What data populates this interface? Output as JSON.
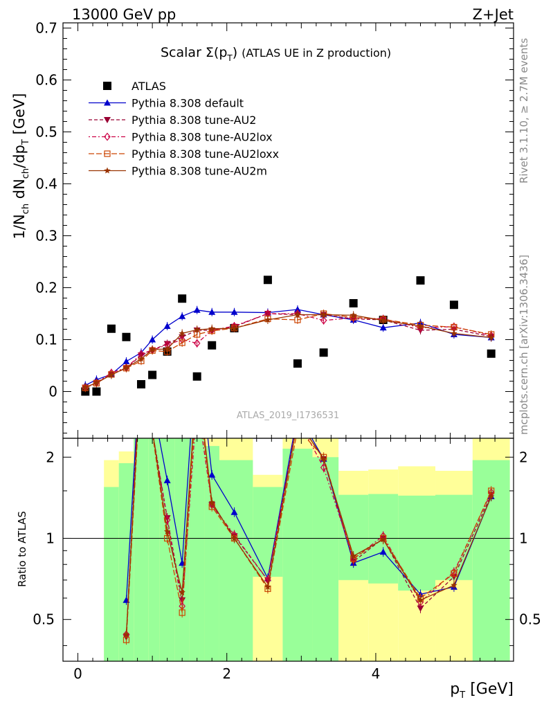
{
  "header": {
    "left": "13000 GeV pp",
    "right": "Z+Jet"
  },
  "side_labels": {
    "rivet": "Rivet 3.1.10, ≥ 2.7M events",
    "mcplots": "mcplots.cern.ch [arXiv:1306.3436]"
  },
  "chart_data": [
    {
      "type": "scatter",
      "panel": "main",
      "title_main": "Scalar Σ(p",
      "title_sub": "T",
      "title_close": ")",
      "title_note": "(ATLAS UE in Z production)",
      "watermark": "ATLAS_2019_I1736531",
      "ylabel": "1/N_ch dN_ch/dp_T [GeV]",
      "xlim": [
        -0.2,
        5.85
      ],
      "ylim": [
        -0.09,
        0.71
      ],
      "y_ticks": [
        0,
        0.1,
        0.2,
        0.3,
        0.4,
        0.5,
        0.6,
        0.7
      ],
      "y_tick_labels": [
        "0",
        "0.1",
        "0.2",
        "0.3",
        "0.4",
        "0.5",
        "0.6",
        "0.7"
      ],
      "legend_position": "top-left",
      "x": [
        0.1,
        0.25,
        0.45,
        0.65,
        0.85,
        1.0,
        1.2,
        1.4,
        1.6,
        1.8,
        2.1,
        2.55,
        2.95,
        3.3,
        3.7,
        4.1,
        4.6,
        5.05,
        5.55
      ],
      "series": [
        {
          "name": "ATLAS",
          "style": "data",
          "color": "#000000",
          "values": [
            0.0,
            0.0,
            0.121,
            0.105,
            0.014,
            0.032,
            0.077,
            0.179,
            0.029,
            0.089,
            0.122,
            0.215,
            0.054,
            0.075,
            0.17,
            0.138,
            0.214,
            0.167,
            0.073
          ]
        },
        {
          "name": "Pythia 8.308 default",
          "style": "solid",
          "marker": "triangle-up",
          "color": "#0000cc",
          "values": [
            0.012,
            0.023,
            0.033,
            0.058,
            0.075,
            0.1,
            0.126,
            0.145,
            0.157,
            0.153,
            0.153,
            0.152,
            0.158,
            0.148,
            0.138,
            0.123,
            0.132,
            0.11,
            0.104
          ]
        },
        {
          "name": "Pythia 8.308 tune-AU2",
          "style": "dashed",
          "marker": "triangle-down",
          "color": "#990033",
          "values": [
            0.008,
            0.017,
            0.033,
            0.045,
            0.07,
            0.08,
            0.092,
            0.105,
            0.118,
            0.118,
            0.125,
            0.15,
            0.148,
            0.148,
            0.14,
            0.138,
            0.118,
            0.12,
            0.106
          ]
        },
        {
          "name": "Pythia 8.308 tune-AU2lox",
          "style": "dotdash",
          "marker": "diamond-open",
          "color": "#cc0044",
          "values": [
            0.008,
            0.017,
            0.036,
            0.046,
            0.072,
            0.08,
            0.09,
            0.1,
            0.093,
            0.118,
            0.126,
            0.15,
            0.15,
            0.137,
            0.142,
            0.14,
            0.123,
            0.125,
            0.108
          ]
        },
        {
          "name": "Pythia 8.308 tune-AU2loxx",
          "style": "longdash",
          "marker": "square-open",
          "color": "#cc4400",
          "values": [
            0.007,
            0.016,
            0.033,
            0.045,
            0.059,
            0.079,
            0.077,
            0.094,
            0.11,
            0.117,
            0.122,
            0.14,
            0.138,
            0.15,
            0.143,
            0.139,
            0.128,
            0.124,
            0.11
          ]
        },
        {
          "name": "Pythia 8.308 tune-AU2m",
          "style": "solid",
          "marker": "star",
          "color": "#993300",
          "values": [
            0.008,
            0.017,
            0.032,
            0.046,
            0.063,
            0.081,
            0.082,
            0.112,
            0.119,
            0.121,
            0.122,
            0.138,
            0.148,
            0.148,
            0.147,
            0.137,
            0.126,
            0.112,
            0.104
          ]
        }
      ]
    },
    {
      "type": "line",
      "panel": "ratio",
      "ylabel": "Ratio to ATLAS",
      "xlabel": "p_T [GeV]",
      "xlim": [
        -0.2,
        5.85
      ],
      "ylim": [
        0.35,
        2.35
      ],
      "y_scale": "log",
      "y_ticks": [
        0.5,
        1,
        2
      ],
      "y_tick_labels": [
        "0.5",
        "1",
        "2"
      ],
      "x_ticks": [
        0,
        2,
        4
      ],
      "x_tick_labels": [
        "0",
        "2",
        "4"
      ],
      "bands": [
        {
          "x0": 0.0,
          "x1": 0.35,
          "green": [
            0.0,
            0.0
          ],
          "yellow": [
            0.0,
            0.0
          ]
        },
        {
          "x0": 0.35,
          "x1": 0.55,
          "green": [
            0.35,
            1.55
          ],
          "yellow": [
            0.35,
            1.95
          ]
        },
        {
          "x0": 0.55,
          "x1": 0.75,
          "green": [
            0.35,
            1.9
          ],
          "yellow": [
            0.35,
            2.1
          ]
        },
        {
          "x0": 0.75,
          "x1": 0.95,
          "green": [
            0.35,
            2.35
          ],
          "yellow": [
            0.35,
            2.35
          ]
        },
        {
          "x0": 0.95,
          "x1": 1.1,
          "green": [
            0.35,
            2.35
          ],
          "yellow": [
            0.35,
            2.35
          ]
        },
        {
          "x0": 1.1,
          "x1": 1.3,
          "green": [
            0.35,
            2.35
          ],
          "yellow": [
            0.35,
            2.35
          ]
        },
        {
          "x0": 1.3,
          "x1": 1.5,
          "green": [
            0.35,
            2.35
          ],
          "yellow": [
            0.35,
            2.35
          ]
        },
        {
          "x0": 1.5,
          "x1": 1.7,
          "green": [
            0.35,
            2.35
          ],
          "yellow": [
            0.35,
            2.35
          ]
        },
        {
          "x0": 1.7,
          "x1": 1.9,
          "green": [
            0.35,
            2.2
          ],
          "yellow": [
            0.35,
            2.35
          ]
        },
        {
          "x0": 1.9,
          "x1": 2.35,
          "green": [
            0.35,
            1.95
          ],
          "yellow": [
            0.35,
            2.35
          ]
        },
        {
          "x0": 2.35,
          "x1": 2.75,
          "green": [
            0.72,
            1.55
          ],
          "yellow": [
            0.35,
            1.72
          ]
        },
        {
          "x0": 2.75,
          "x1": 3.15,
          "green": [
            0.35,
            2.15
          ],
          "yellow": [
            0.35,
            2.35
          ]
        },
        {
          "x0": 3.15,
          "x1": 3.5,
          "green": [
            0.35,
            2.0
          ],
          "yellow": [
            0.35,
            2.35
          ]
        },
        {
          "x0": 3.5,
          "x1": 3.9,
          "green": [
            0.7,
            1.45
          ],
          "yellow": [
            0.35,
            1.78
          ]
        },
        {
          "x0": 3.9,
          "x1": 4.3,
          "green": [
            0.68,
            1.46
          ],
          "yellow": [
            0.35,
            1.8
          ]
        },
        {
          "x0": 4.3,
          "x1": 4.8,
          "green": [
            0.64,
            1.44
          ],
          "yellow": [
            0.35,
            1.85
          ]
        },
        {
          "x0": 4.8,
          "x1": 5.3,
          "green": [
            0.7,
            1.45
          ],
          "yellow": [
            0.35,
            1.78
          ]
        },
        {
          "x0": 5.3,
          "x1": 5.8,
          "green": [
            0.35,
            1.95
          ],
          "yellow": [
            0.35,
            2.35
          ]
        }
      ],
      "x": [
        0.65,
        0.85,
        1.0,
        1.2,
        1.4,
        1.6,
        1.8,
        2.1,
        2.55,
        2.95,
        3.3,
        3.7,
        4.1,
        4.6,
        5.05,
        5.55
      ],
      "series": [
        {
          "name": "Pythia 8.308 default",
          "color": "#0000cc",
          "values": [
            0.59,
            5.0,
            3.2,
            1.64,
            0.81,
            5.4,
            1.72,
            1.25,
            0.71,
            2.9,
            1.97,
            0.81,
            0.89,
            0.62,
            0.66,
            1.43
          ]
        },
        {
          "name": "Pythia 8.308 tune-AU2",
          "color": "#990033",
          "values": [
            0.43,
            5.0,
            2.5,
            1.19,
            0.59,
            4.1,
            1.33,
            1.02,
            0.7,
            2.74,
            1.97,
            0.82,
            1.0,
            0.55,
            0.72,
            1.45
          ]
        },
        {
          "name": "Pythia 8.308 tune-AU2lox",
          "color": "#cc0044",
          "values": [
            0.44,
            5.0,
            2.5,
            1.17,
            0.56,
            3.2,
            1.33,
            1.03,
            0.7,
            2.78,
            1.83,
            0.84,
            1.02,
            0.58,
            0.75,
            1.48
          ]
        },
        {
          "name": "Pythia 8.308 tune-AU2loxx",
          "color": "#cc4400",
          "values": [
            0.42,
            4.2,
            2.47,
            1.0,
            0.53,
            3.8,
            1.31,
            1.0,
            0.65,
            2.55,
            2.0,
            0.84,
            1.0,
            0.6,
            0.74,
            1.5
          ]
        },
        {
          "name": "Pythia 8.308 tune-AU2m",
          "color": "#993300",
          "values": [
            0.44,
            4.5,
            2.53,
            1.06,
            0.63,
            4.1,
            1.36,
            1.0,
            0.66,
            2.74,
            1.97,
            0.86,
            0.99,
            0.59,
            0.67,
            1.43
          ]
        }
      ]
    }
  ]
}
